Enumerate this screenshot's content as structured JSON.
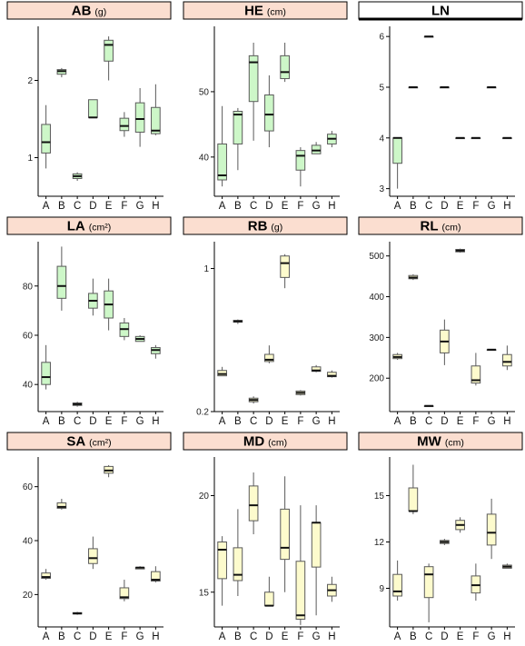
{
  "figure": {
    "colors": {
      "header_bg": "#fbded0",
      "header_bg_dark": "#ffffff",
      "box_green": "#cdf7c8",
      "box_yellow": "#fdfbcd",
      "line": "#5a5a5a",
      "median": "#111111",
      "axis": "#000000"
    }
  },
  "chart_data": [
    {
      "id": "AB",
      "type": "boxplot",
      "title": "AB",
      "unit": "(g)",
      "header_style": "light",
      "fill": "green",
      "categories": [
        "A",
        "B",
        "C",
        "D",
        "E",
        "F",
        "G",
        "H"
      ],
      "ylim": [
        0.5,
        2.7
      ],
      "yticks": [
        1,
        2
      ],
      "boxes": [
        {
          "min": 0.86,
          "q1": 1.06,
          "median": 1.2,
          "q3": 1.43,
          "max": 1.68
        },
        {
          "min": 2.04,
          "q1": 2.08,
          "median": 2.12,
          "q3": 2.14,
          "max": 2.16
        },
        {
          "min": 0.7,
          "q1": 0.73,
          "median": 0.76,
          "q3": 0.79,
          "max": 0.81
        },
        {
          "min": 1.52,
          "q1": 1.52,
          "median": 1.52,
          "q3": 1.75,
          "max": 1.75
        },
        {
          "min": 2.0,
          "q1": 2.25,
          "median": 2.46,
          "q3": 2.52,
          "max": 2.57
        },
        {
          "min": 1.27,
          "q1": 1.35,
          "median": 1.41,
          "q3": 1.51,
          "max": 1.59
        },
        {
          "min": 1.14,
          "q1": 1.33,
          "median": 1.5,
          "q3": 1.71,
          "max": 1.9
        },
        {
          "min": 1.29,
          "q1": 1.31,
          "median": 1.35,
          "q3": 1.65,
          "max": 1.95
        }
      ]
    },
    {
      "id": "HE",
      "type": "boxplot",
      "title": "HE",
      "unit": "(cm)",
      "header_style": "light",
      "fill": "green",
      "categories": [
        "A",
        "B",
        "C",
        "D",
        "E",
        "F",
        "G",
        "H"
      ],
      "ylim": [
        34,
        60
      ],
      "yticks": [
        40,
        50
      ],
      "boxes": [
        {
          "min": 35.5,
          "q1": 36.5,
          "median": 37.2,
          "q3": 42.0,
          "max": 47.8
        },
        {
          "min": 38.0,
          "q1": 42.0,
          "median": 46.5,
          "q3": 47.0,
          "max": 47.5
        },
        {
          "min": 42.5,
          "q1": 48.5,
          "median": 54.5,
          "q3": 55.5,
          "max": 57.5
        },
        {
          "min": 41.5,
          "q1": 44.0,
          "median": 46.5,
          "q3": 49.5,
          "max": 52.5
        },
        {
          "min": 51.5,
          "q1": 52.0,
          "median": 53.0,
          "q3": 55.5,
          "max": 57.5
        },
        {
          "min": 35.5,
          "q1": 38.0,
          "median": 40.2,
          "q3": 41.0,
          "max": 41.5
        },
        {
          "min": 40.5,
          "q1": 40.5,
          "median": 41.0,
          "q3": 41.8,
          "max": 42.3
        },
        {
          "min": 41.5,
          "q1": 42.0,
          "median": 42.8,
          "q3": 43.5,
          "max": 44.0
        }
      ]
    },
    {
      "id": "LN",
      "type": "boxplot",
      "title": "LN",
      "unit": "",
      "header_style": "dark",
      "fill": "green",
      "categories": [
        "A",
        "B",
        "C",
        "D",
        "E",
        "F",
        "G",
        "H"
      ],
      "ylim": [
        2.85,
        6.2
      ],
      "yticks": [
        3,
        4,
        5,
        6
      ],
      "boxes": [
        {
          "min": 3.0,
          "q1": 3.5,
          "median": 4.0,
          "q3": 4.0,
          "max": 4.0
        },
        {
          "min": 5.0,
          "q1": 5.0,
          "median": 5.0,
          "q3": 5.0,
          "max": 5.0
        },
        {
          "min": 6.0,
          "q1": 6.0,
          "median": 6.0,
          "q3": 6.0,
          "max": 6.0
        },
        {
          "min": 5.0,
          "q1": 5.0,
          "median": 5.0,
          "q3": 5.0,
          "max": 5.0
        },
        {
          "min": 4.0,
          "q1": 4.0,
          "median": 4.0,
          "q3": 4.0,
          "max": 4.0
        },
        {
          "min": 4.0,
          "q1": 4.0,
          "median": 4.0,
          "q3": 4.0,
          "max": 4.0
        },
        {
          "min": 5.0,
          "q1": 5.0,
          "median": 5.0,
          "q3": 5.0,
          "max": 5.0
        },
        {
          "min": 4.0,
          "q1": 4.0,
          "median": 4.0,
          "q3": 4.0,
          "max": 4.0
        }
      ]
    },
    {
      "id": "LA",
      "type": "boxplot",
      "title": "LA",
      "unit": "(cm²)",
      "header_style": "light",
      "fill": "green",
      "categories": [
        "A",
        "B",
        "C",
        "D",
        "E",
        "F",
        "G",
        "H"
      ],
      "ylim": [
        29,
        98
      ],
      "yticks": [
        40,
        60,
        80
      ],
      "boxes": [
        {
          "min": 38.0,
          "q1": 40.0,
          "median": 43.0,
          "q3": 49.0,
          "max": 56.0
        },
        {
          "min": 70.0,
          "q1": 75.0,
          "median": 80.0,
          "q3": 88.0,
          "max": 96.0
        },
        {
          "min": 31.0,
          "q1": 31.5,
          "median": 32.0,
          "q3": 32.5,
          "max": 33.0
        },
        {
          "min": 68.0,
          "q1": 71.0,
          "median": 74.0,
          "q3": 77.0,
          "max": 83.0
        },
        {
          "min": 62.0,
          "q1": 67.0,
          "median": 72.5,
          "q3": 78.0,
          "max": 83.0
        },
        {
          "min": 58.0,
          "q1": 59.5,
          "median": 62.5,
          "q3": 65.0,
          "max": 67.0
        },
        {
          "min": 57.5,
          "q1": 57.5,
          "median": 58.5,
          "q3": 59.5,
          "max": 60.0
        },
        {
          "min": 50.5,
          "q1": 52.5,
          "median": 54.0,
          "q3": 55.0,
          "max": 56.0
        }
      ]
    },
    {
      "id": "RB",
      "type": "boxplot",
      "title": "RB",
      "unit": "(g)",
      "header_style": "light",
      "fill": "yellow",
      "categories": [
        "A",
        "B",
        "C",
        "D",
        "E",
        "F",
        "G",
        "H"
      ],
      "ylim": [
        0.2,
        1.15
      ],
      "yticks": [
        0.2,
        1
      ],
      "yticklabels": [
        "0.2",
        "1"
      ],
      "boxes": [
        {
          "min": 0.4,
          "q1": 0.4,
          "median": 0.41,
          "q3": 0.43,
          "max": 0.45
        },
        {
          "min": 0.69,
          "q1": 0.7,
          "median": 0.705,
          "q3": 0.71,
          "max": 0.715
        },
        {
          "min": 0.245,
          "q1": 0.255,
          "median": 0.265,
          "q3": 0.275,
          "max": 0.285
        },
        {
          "min": 0.47,
          "q1": 0.48,
          "median": 0.49,
          "q3": 0.52,
          "max": 0.57
        },
        {
          "min": 0.89,
          "q1": 0.95,
          "median": 1.03,
          "q3": 1.07,
          "max": 1.08
        },
        {
          "min": 0.29,
          "q1": 0.295,
          "median": 0.305,
          "q3": 0.315,
          "max": 0.32
        },
        {
          "min": 0.42,
          "q1": 0.425,
          "median": 0.43,
          "q3": 0.45,
          "max": 0.46
        },
        {
          "min": 0.39,
          "q1": 0.395,
          "median": 0.4,
          "q3": 0.42,
          "max": 0.43
        }
      ]
    },
    {
      "id": "RL",
      "type": "boxplot",
      "title": "RL",
      "unit": "(cm)",
      "header_style": "light",
      "fill": "yellow",
      "categories": [
        "A",
        "B",
        "C",
        "D",
        "E",
        "F",
        "G",
        "H"
      ],
      "ylim": [
        118,
        535
      ],
      "yticks": [
        200,
        300,
        400,
        500
      ],
      "boxes": [
        {
          "min": 245,
          "q1": 248,
          "median": 252,
          "q3": 258,
          "max": 262
        },
        {
          "min": 441,
          "q1": 444,
          "median": 447,
          "q3": 452,
          "max": 455
        },
        {
          "min": 131,
          "q1": 131,
          "median": 132,
          "q3": 132,
          "max": 133
        },
        {
          "min": 232,
          "q1": 262,
          "median": 290,
          "q3": 318,
          "max": 344
        },
        {
          "min": 508,
          "q1": 510,
          "median": 513,
          "q3": 516,
          "max": 518
        },
        {
          "min": 182,
          "q1": 188,
          "median": 195,
          "q3": 230,
          "max": 262
        },
        {
          "min": 269,
          "q1": 269,
          "median": 270,
          "q3": 270,
          "max": 271
        },
        {
          "min": 220,
          "q1": 230,
          "median": 240,
          "q3": 258,
          "max": 280
        }
      ]
    },
    {
      "id": "SA",
      "type": "boxplot",
      "title": "SA",
      "unit": "(cm²)",
      "header_style": "light",
      "fill": "yellow",
      "categories": [
        "A",
        "B",
        "C",
        "D",
        "E",
        "F",
        "G",
        "H"
      ],
      "ylim": [
        8,
        71
      ],
      "yticks": [
        20,
        40,
        60
      ],
      "boxes": [
        {
          "min": 25.5,
          "q1": 26.0,
          "median": 26.5,
          "q3": 28.0,
          "max": 29.5
        },
        {
          "min": 51.5,
          "q1": 52.0,
          "median": 52.5,
          "q3": 54.0,
          "max": 55.5
        },
        {
          "min": 12.5,
          "q1": 12.8,
          "median": 13.0,
          "q3": 13.3,
          "max": 13.6
        },
        {
          "min": 29.5,
          "q1": 31.5,
          "median": 33.5,
          "q3": 37.0,
          "max": 41.5
        },
        {
          "min": 63.5,
          "q1": 65.0,
          "median": 66.0,
          "q3": 67.5,
          "max": 68.0
        },
        {
          "min": 17.5,
          "q1": 18.5,
          "median": 19.0,
          "q3": 22.5,
          "max": 25.5
        },
        {
          "min": 29.5,
          "q1": 29.5,
          "median": 30.0,
          "q3": 30.0,
          "max": 30.5
        },
        {
          "min": 24.5,
          "q1": 25.0,
          "median": 25.5,
          "q3": 28.5,
          "max": 30.5
        }
      ]
    },
    {
      "id": "MD",
      "type": "boxplot",
      "title": "MD",
      "unit": "(cm)",
      "header_style": "light",
      "fill": "yellow",
      "categories": [
        "A",
        "B",
        "C",
        "D",
        "E",
        "F",
        "G",
        "H"
      ],
      "ylim": [
        13.2,
        22.0
      ],
      "yticks": [
        15,
        20
      ],
      "boxes": [
        {
          "min": 14.3,
          "q1": 15.7,
          "median": 17.2,
          "q3": 17.6,
          "max": 17.9
        },
        {
          "min": 14.8,
          "q1": 15.6,
          "median": 15.9,
          "q3": 17.3,
          "max": 19.3
        },
        {
          "min": 18.0,
          "q1": 18.7,
          "median": 19.5,
          "q3": 20.5,
          "max": 21.2
        },
        {
          "min": 14.3,
          "q1": 14.3,
          "median": 14.3,
          "q3": 15.0,
          "max": 15.8
        },
        {
          "min": 15.0,
          "q1": 16.7,
          "median": 17.3,
          "q3": 19.3,
          "max": 21.0
        },
        {
          "min": 13.3,
          "q1": 13.6,
          "median": 13.8,
          "q3": 16.6,
          "max": 19.5
        },
        {
          "min": 13.8,
          "q1": 16.3,
          "median": 18.6,
          "q3": 18.6,
          "max": 19.5
        },
        {
          "min": 14.5,
          "q1": 14.8,
          "median": 15.1,
          "q3": 15.4,
          "max": 15.8
        }
      ]
    },
    {
      "id": "MW",
      "type": "boxplot",
      "title": "MW",
      "unit": "(cm)",
      "header_style": "light",
      "fill": "yellow",
      "categories": [
        "A",
        "B",
        "C",
        "D",
        "E",
        "F",
        "G",
        "H"
      ],
      "ylim": [
        6.5,
        17.5
      ],
      "yticks": [
        9,
        12,
        15
      ],
      "boxes": [
        {
          "min": 8.2,
          "q1": 8.5,
          "median": 8.8,
          "q3": 9.9,
          "max": 10.8
        },
        {
          "min": 13.8,
          "q1": 14.0,
          "median": 14.0,
          "q3": 15.5,
          "max": 17.0
        },
        {
          "min": 6.8,
          "q1": 8.4,
          "median": 9.9,
          "q3": 10.4,
          "max": 10.6
        },
        {
          "min": 11.8,
          "q1": 11.9,
          "median": 12.0,
          "q3": 12.1,
          "max": 12.2
        },
        {
          "min": 12.6,
          "q1": 12.8,
          "median": 13.1,
          "q3": 13.4,
          "max": 13.6
        },
        {
          "min": 8.2,
          "q1": 8.7,
          "median": 9.2,
          "q3": 9.8,
          "max": 10.6
        },
        {
          "min": 10.9,
          "q1": 11.8,
          "median": 12.6,
          "q3": 13.8,
          "max": 14.8
        },
        {
          "min": 10.3,
          "q1": 10.3,
          "median": 10.4,
          "q3": 10.5,
          "max": 10.6
        }
      ]
    }
  ]
}
